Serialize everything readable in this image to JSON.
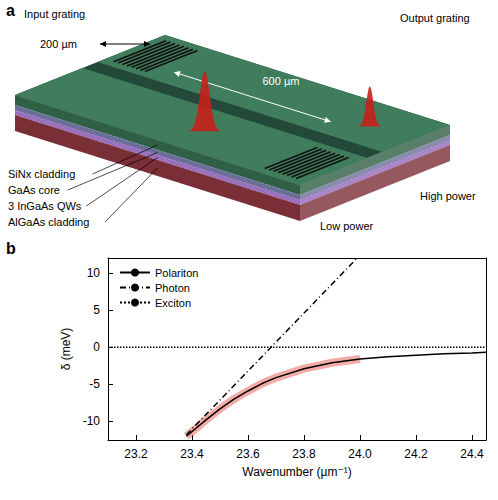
{
  "diagram": {
    "letter": "a",
    "labels": {
      "input_grating": "Input grating",
      "input_length": "200 µm",
      "length": "600 µm",
      "output_grating": "Output grating",
      "high_power": "High power",
      "low_power": "Low power"
    },
    "layers": [
      "SiNx cladding",
      "GaAs core",
      "3 InGaAs QWs",
      "AlGaAs cladding"
    ]
  },
  "chart_data": {
    "type": "line",
    "letter": "b",
    "x_label": "Wavenumber (µm⁻¹)",
    "y_label": "δ (meV)",
    "xlim": [
      23.1,
      24.45
    ],
    "xticks": [
      23.2,
      23.4,
      23.6,
      23.8,
      {
        "value": 24,
        "label": "24.0"
      },
      24.2,
      24.4
    ],
    "ylim": [
      -12.5,
      12
    ],
    "yticks": [
      -10,
      -5,
      0,
      5,
      10
    ],
    "legend": "upper left",
    "series": [
      {
        "name": "Polariton",
        "color": "#000000",
        "line_style": "solid",
        "x": [
          23.38,
          23.45,
          23.5,
          23.55,
          23.6,
          23.65,
          23.7,
          23.8,
          23.9,
          24.0,
          24.1,
          24.2,
          24.3,
          24.4,
          24.45
        ],
        "values": [
          -12,
          -9.8,
          -8.3,
          -7,
          -5.9,
          -4.9,
          -4.1,
          -2.9,
          -2.1,
          -1.6,
          -1.3,
          -1.1,
          -0.9,
          -0.8,
          -0.7
        ]
      },
      {
        "name": "Photon",
        "color": "#000000",
        "line_style": "dashdot",
        "x": [
          23.38,
          23.99
        ],
        "values": [
          -11.8,
          12
        ]
      },
      {
        "name": "Exciton",
        "color": "#000000",
        "line_style": "dotted",
        "x": [
          23.1,
          24.45
        ],
        "values": [
          0,
          0
        ]
      },
      {
        "color": "#e0301e",
        "line_style": "band",
        "x": [
          23.38,
          23.45,
          23.5,
          23.55,
          23.6,
          23.65,
          23.7,
          23.8,
          23.9,
          24.0
        ],
        "values": [
          -12,
          -9.8,
          -8.3,
          -7,
          -5.9,
          -4.9,
          -4.1,
          -2.9,
          -2.1,
          -1.6
        ]
      }
    ]
  }
}
